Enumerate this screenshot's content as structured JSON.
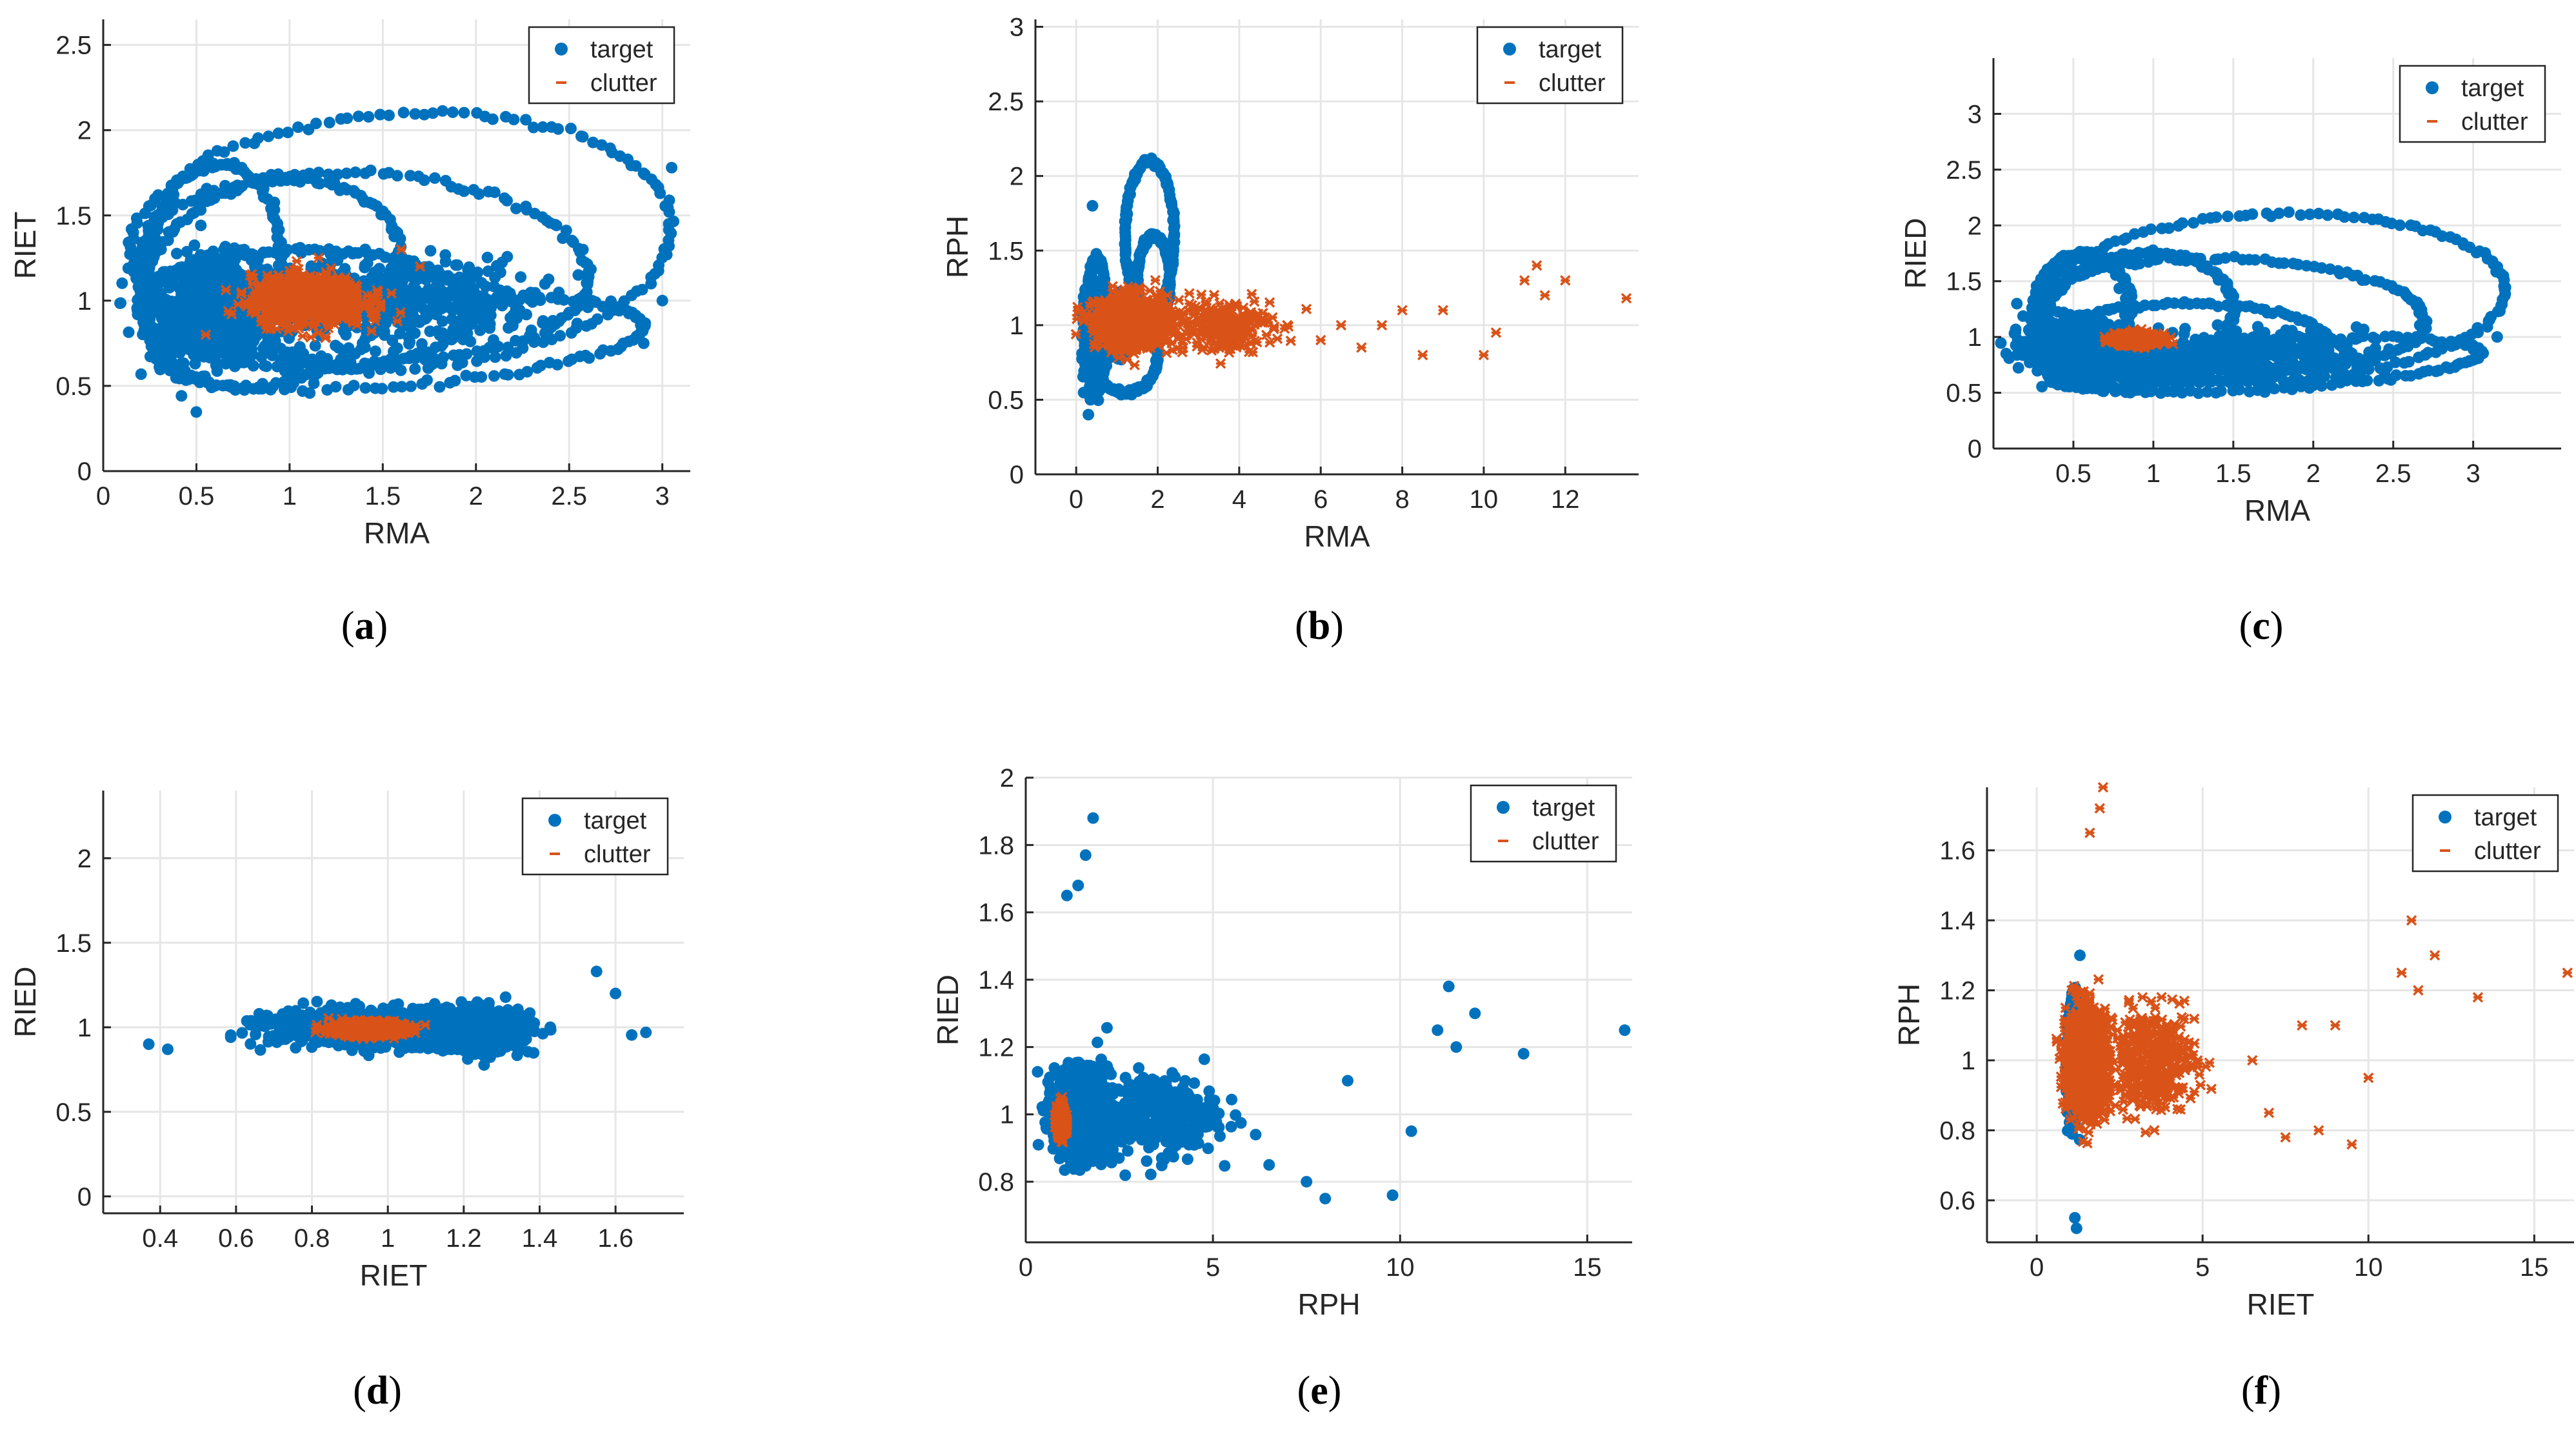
{
  "colors": {
    "target": "#0072BD",
    "clutter": "#D95319",
    "grid": "#e6e6e6",
    "axis": "#262626"
  },
  "chart_data": [
    {
      "id": "a",
      "type": "scatter",
      "label": "a",
      "xlabel": "RMA",
      "ylabel": "RIET",
      "xlim": [
        0,
        3.15
      ],
      "ylim": [
        0,
        2.65
      ],
      "xticks": [
        0,
        0.5,
        1,
        1.5,
        2,
        2.5,
        3
      ],
      "xticklabels": [
        "0",
        "0.5",
        "1",
        "1.5",
        "2",
        "2.5",
        "3"
      ],
      "yticks": [
        0,
        0.5,
        1,
        1.5,
        2,
        2.5
      ],
      "yticklabels": [
        "0",
        "0.5",
        "1",
        "1.5",
        "2",
        "2.5"
      ],
      "legend": [
        "target",
        "clutter"
      ],
      "series": [
        {
          "name": "target",
          "marker": "dot",
          "clusters": [
            [
              0.6,
              0.95,
              0.35,
              0.3,
              700
            ],
            [
              1.5,
              1.0,
              0.8,
              0.25,
              500
            ]
          ],
          "loops": [
            [
              1.6,
              1.35,
              1.45,
              0.75,
              0.05
            ],
            [
              1.4,
              1.2,
              1.2,
              0.55,
              -0.05
            ],
            [
              0.9,
              1.1,
              0.7,
              0.6,
              0.15
            ],
            [
              1.1,
              0.95,
              0.9,
              0.35,
              0
            ],
            [
              0.6,
              1.25,
              0.35,
              0.55,
              0.1
            ],
            [
              1.6,
              0.75,
              1.3,
              0.25,
              0.08
            ]
          ],
          "points": [
            [
              3.0,
              1.0
            ],
            [
              2.9,
              0.75
            ],
            [
              3.05,
              1.78
            ]
          ]
        },
        {
          "name": "clutter",
          "marker": "x",
          "clusters": [
            [
              1.1,
              1.0,
              0.3,
              0.14,
              900
            ]
          ],
          "points": [
            [
              1.6,
              1.3
            ],
            [
              1.7,
              1.2
            ],
            [
              0.55,
              0.8
            ]
          ]
        }
      ]
    },
    {
      "id": "b",
      "type": "scatter",
      "label": "b",
      "xlabel": "RMA",
      "ylabel": "RPH",
      "xlim": [
        -1,
        13.8
      ],
      "ylim": [
        0,
        3.05
      ],
      "xticks": [
        0,
        2,
        4,
        6,
        8,
        10,
        12
      ],
      "xticklabels": [
        "0",
        "2",
        "4",
        "6",
        "8",
        "10",
        "12"
      ],
      "yticks": [
        0,
        0.5,
        1,
        1.5,
        2,
        2.5,
        3
      ],
      "yticklabels": [
        "0",
        "0.5",
        "1",
        "1.5",
        "2",
        "2.5",
        "3"
      ],
      "legend": [
        "target",
        "clutter"
      ],
      "series": [
        {
          "name": "target",
          "marker": "dot",
          "clusters": [
            [
              0.35,
              0.95,
              0.15,
              0.3,
              500
            ],
            [
              0.9,
              1.0,
              0.5,
              0.2,
              200
            ]
          ],
          "loops": [
            [
              1.8,
              1.6,
              0.6,
              0.5,
              0
            ],
            [
              1.9,
              1.3,
              0.4,
              0.3,
              0
            ],
            [
              0.5,
              1.0,
              0.25,
              0.45,
              0
            ],
            [
              1.2,
              0.8,
              0.8,
              0.25,
              0
            ]
          ],
          "points": [
            [
              0.3,
              0.4
            ],
            [
              0.35,
              0.5
            ],
            [
              0.4,
              1.8
            ]
          ]
        },
        {
          "name": "clutter",
          "marker": "x",
          "clusters": [
            [
              1.4,
              1.02,
              0.9,
              0.17,
              900
            ],
            [
              3.5,
              1.0,
              1.3,
              0.18,
              250
            ]
          ],
          "points": [
            [
              6.5,
              1.0
            ],
            [
              7.0,
              0.85
            ],
            [
              8.0,
              1.1
            ],
            [
              8.5,
              0.8
            ],
            [
              9.0,
              1.1
            ],
            [
              10.3,
              0.95
            ],
            [
              10.0,
              0.8
            ],
            [
              11.0,
              1.3
            ],
            [
              11.3,
              1.4
            ],
            [
              11.5,
              1.2
            ],
            [
              12.0,
              1.3
            ],
            [
              13.5,
              1.18
            ],
            [
              7.5,
              1.0
            ],
            [
              6.0,
              0.9
            ]
          ]
        }
      ]
    },
    {
      "id": "c",
      "type": "scatter",
      "label": "c",
      "xlabel": "RMA",
      "ylabel": "RIED",
      "xlim": [
        0,
        3.55
      ],
      "ylim": [
        0,
        3.5
      ],
      "xticks": [
        0.5,
        1,
        1.5,
        2,
        2.5,
        3
      ],
      "xticklabels": [
        "0.5",
        "1",
        "1.5",
        "2",
        "2.5",
        "3"
      ],
      "yticks": [
        0,
        0.5,
        1,
        1.5,
        2,
        2.5,
        3
      ],
      "yticklabels": [
        "0",
        "0.5",
        "1",
        "1.5",
        "2",
        "2.5",
        "3"
      ],
      "legend": [
        "target",
        "clutter"
      ],
      "series": [
        {
          "name": "target",
          "marker": "dot",
          "clusters": [
            [
              0.5,
              0.9,
              0.3,
              0.25,
              600
            ],
            [
              1.5,
              0.85,
              0.8,
              0.2,
              400
            ]
          ],
          "loops": [
            [
              1.75,
              1.35,
              1.45,
              0.75,
              0.05
            ],
            [
              1.5,
              1.2,
              1.2,
              0.5,
              -0.05
            ],
            [
              0.9,
              1.15,
              0.6,
              0.6,
              0.15
            ],
            [
              1.2,
              0.95,
              0.9,
              0.35,
              0
            ],
            [
              0.55,
              1.25,
              0.3,
              0.5,
              0.1
            ],
            [
              1.7,
              0.75,
              1.35,
              0.22,
              0.08
            ]
          ],
          "points": [
            [
              3.15,
              1.0
            ],
            [
              2.9,
              0.75
            ]
          ]
        },
        {
          "name": "clutter",
          "marker": "x",
          "clusters": [
            [
              0.9,
              0.98,
              0.14,
              0.05,
              800
            ]
          ],
          "points": []
        }
      ]
    },
    {
      "id": "d",
      "type": "scatter",
      "label": "d",
      "xlabel": "RIET",
      "ylabel": "RIED",
      "xlim": [
        0.25,
        1.78
      ],
      "ylim": [
        -0.1,
        2.4
      ],
      "xticks": [
        0.4,
        0.6,
        0.8,
        1,
        1.2,
        1.4,
        1.6
      ],
      "xticklabels": [
        "0.4",
        "0.6",
        "0.8",
        "1",
        "1.2",
        "1.4",
        "1.6"
      ],
      "yticks": [
        0,
        0.5,
        1,
        1.5,
        2
      ],
      "yticklabels": [
        "0",
        "0.5",
        "1",
        "1.5",
        "2"
      ],
      "legend": [
        "target",
        "clutter"
      ],
      "series": [
        {
          "name": "target",
          "marker": "dot",
          "clusters": [
            [
              1.0,
              1.0,
              0.3,
              0.1,
              1200
            ],
            [
              1.25,
              0.98,
              0.1,
              0.12,
              700
            ]
          ],
          "points": [
            [
              0.37,
              0.9
            ],
            [
              0.42,
              0.87
            ],
            [
              1.6,
              1.2
            ],
            [
              1.68,
              0.97
            ],
            [
              1.55,
              1.33
            ]
          ]
        },
        {
          "name": "clutter",
          "marker": "x",
          "clusters": [
            [
              0.95,
              0.99,
              0.09,
              0.04,
              800
            ]
          ],
          "points": []
        }
      ]
    },
    {
      "id": "e",
      "type": "scatter",
      "label": "e",
      "xlabel": "RPH",
      "ylabel": "RIED",
      "xlim": [
        0,
        16.2
      ],
      "ylim": [
        0.62,
        2.0
      ],
      "xticks": [
        0,
        5,
        10,
        15
      ],
      "xticklabels": [
        "0",
        "5",
        "10",
        "15"
      ],
      "yticks": [
        0.8,
        1,
        1.2,
        1.4,
        1.6,
        1.8,
        2
      ],
      "yticklabels": [
        "0.8",
        "1",
        "1.2",
        "1.4",
        "1.6",
        "1.8",
        "2"
      ],
      "legend": [
        "target",
        "clutter"
      ],
      "series": [
        {
          "name": "target",
          "marker": "dot",
          "clusters": [
            [
              1.5,
              1.0,
              0.7,
              0.12,
              1400
            ],
            [
              3.5,
              1.0,
              1.6,
              0.12,
              300
            ]
          ],
          "points": [
            [
              1.8,
              1.88
            ],
            [
              1.6,
              1.77
            ],
            [
              1.1,
              1.65
            ],
            [
              1.4,
              1.68
            ],
            [
              8.0,
              0.75
            ],
            [
              10.3,
              0.95
            ],
            [
              11.0,
              1.25
            ],
            [
              11.3,
              1.38
            ],
            [
              11.5,
              1.2
            ],
            [
              12.0,
              1.3
            ],
            [
              13.3,
              1.18
            ],
            [
              16.0,
              1.25
            ],
            [
              7.5,
              0.8
            ],
            [
              8.6,
              1.1
            ],
            [
              6.5,
              0.85
            ],
            [
              9.8,
              0.76
            ]
          ]
        },
        {
          "name": "clutter",
          "marker": "x",
          "clusters": [
            [
              0.95,
              0.98,
              0.12,
              0.04,
              700
            ]
          ],
          "points": []
        }
      ]
    },
    {
      "id": "f",
      "type": "scatter",
      "label": "f",
      "xlabel": "RIET",
      "ylabel": "RPH",
      "xlim": [
        -1.5,
        16.2
      ],
      "ylim": [
        0.48,
        1.78
      ],
      "xticks": [
        0,
        5,
        10,
        15
      ],
      "xticklabels": [
        "0",
        "5",
        "10",
        "15"
      ],
      "yticks": [
        0.6,
        0.8,
        1,
        1.2,
        1.4,
        1.6
      ],
      "yticklabels": [
        "0.6",
        "0.8",
        "1",
        "1.2",
        "1.4",
        "1.6"
      ],
      "legend": [
        "target",
        "clutter"
      ],
      "series": [
        {
          "name": "target",
          "marker": "dot",
          "clusters": [
            [
              1.1,
              1.0,
              0.15,
              0.15,
              700
            ]
          ],
          "points": [
            [
              1.2,
              0.52
            ],
            [
              1.15,
              0.55
            ],
            [
              1.3,
              1.3
            ]
          ]
        },
        {
          "name": "clutter",
          "marker": "x",
          "clusters": [
            [
              1.5,
              1.0,
              0.6,
              0.14,
              1400
            ],
            [
              3.5,
              1.0,
              1.3,
              0.14,
              400
            ]
          ],
          "points": [
            [
              1.9,
              1.72
            ],
            [
              1.6,
              1.65
            ],
            [
              2.0,
              1.78
            ],
            [
              6.5,
              1.0
            ],
            [
              7.0,
              0.85
            ],
            [
              8.0,
              1.1
            ],
            [
              8.5,
              0.8
            ],
            [
              9.0,
              1.1
            ],
            [
              10.0,
              0.95
            ],
            [
              9.5,
              0.76
            ],
            [
              11.0,
              1.25
            ],
            [
              11.3,
              1.4
            ],
            [
              11.5,
              1.2
            ],
            [
              12.0,
              1.3
            ],
            [
              13.3,
              1.18
            ],
            [
              16.0,
              1.25
            ],
            [
              7.5,
              0.78
            ]
          ]
        }
      ]
    }
  ]
}
